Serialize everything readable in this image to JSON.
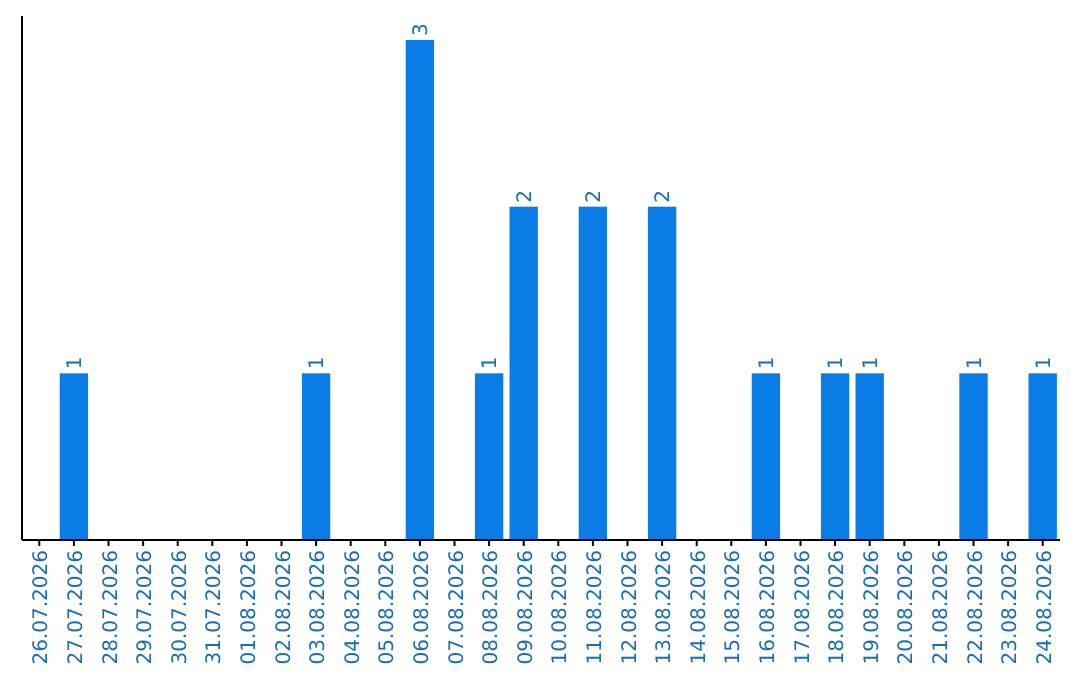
{
  "chart_data": {
    "type": "bar",
    "categories": [
      "26.07.2026",
      "27.07.2026",
      "28.07.2026",
      "29.07.2026",
      "30.07.2026",
      "31.07.2026",
      "01.08.2026",
      "02.08.2026",
      "03.08.2026",
      "04.08.2026",
      "05.08.2026",
      "06.08.2026",
      "07.08.2026",
      "08.08.2026",
      "09.08.2026",
      "10.08.2026",
      "11.08.2026",
      "12.08.2026",
      "13.08.2026",
      "14.08.2026",
      "15.08.2026",
      "16.08.2026",
      "17.08.2026",
      "18.08.2026",
      "19.08.2026",
      "20.08.2026",
      "21.08.2026",
      "22.08.2026",
      "23.08.2026",
      "24.08.2026"
    ],
    "values": [
      0,
      1,
      0,
      0,
      0,
      0,
      0,
      0,
      1,
      0,
      0,
      3,
      0,
      1,
      2,
      0,
      2,
      0,
      2,
      0,
      0,
      1,
      0,
      1,
      1,
      0,
      0,
      1,
      0,
      1
    ],
    "value_labels": [
      null,
      "1",
      null,
      null,
      null,
      null,
      null,
      null,
      "1",
      null,
      null,
      "3",
      null,
      "1",
      "2",
      null,
      "2",
      null,
      "2",
      null,
      null,
      "1",
      null,
      "1",
      "1",
      null,
      null,
      "1",
      null,
      "1"
    ],
    "color": "#0a7ce6"
  }
}
